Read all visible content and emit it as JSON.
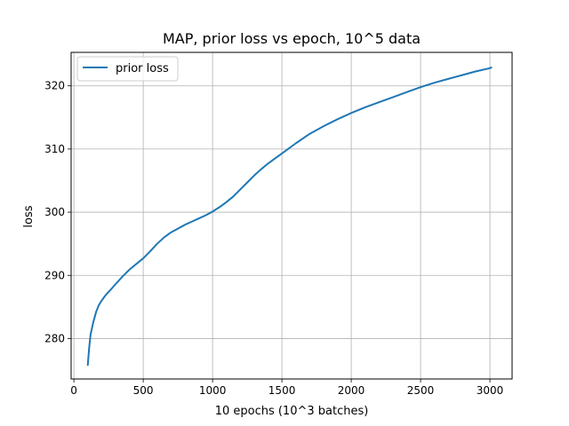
{
  "chart_data": {
    "type": "line",
    "title": "MAP, prior loss vs epoch, 10^5 data",
    "xlabel": "10 epochs (10^3 batches)",
    "ylabel": "loss",
    "xlim": [
      -20,
      3160
    ],
    "ylim": [
      273.6,
      325.3
    ],
    "xticks": [
      0,
      500,
      1000,
      1500,
      2000,
      2500,
      3000
    ],
    "xtick_labels": [
      "0",
      "500",
      "1000",
      "1500",
      "2000",
      "2500",
      "3000"
    ],
    "yticks": [
      280,
      290,
      300,
      310,
      320
    ],
    "ytick_labels": [
      "280",
      "290",
      "300",
      "310",
      "320"
    ],
    "grid": true,
    "legend_position": "top-left",
    "series": [
      {
        "name": "prior loss",
        "color": "#1f77b4",
        "x": [
          100,
          110,
          120,
          140,
          160,
          180,
          200,
          230,
          260,
          300,
          350,
          400,
          450,
          500,
          550,
          600,
          650,
          700,
          750,
          800,
          850,
          900,
          950,
          1000,
          1050,
          1100,
          1150,
          1200,
          1250,
          1300,
          1350,
          1400,
          1450,
          1500,
          1600,
          1700,
          1800,
          1900,
          2000,
          2100,
          2200,
          2300,
          2400,
          2500,
          2600,
          2700,
          2800,
          2900,
          3000,
          3010
        ],
        "y": [
          275.8,
          278.5,
          280.6,
          282.6,
          284.2,
          285.3,
          286.0,
          286.9,
          287.6,
          288.6,
          289.8,
          290.9,
          291.8,
          292.7,
          293.8,
          295.0,
          296.0,
          296.8,
          297.4,
          298.0,
          298.5,
          299.0,
          299.5,
          300.1,
          300.8,
          301.6,
          302.5,
          303.6,
          304.7,
          305.8,
          306.8,
          307.7,
          308.5,
          309.3,
          310.9,
          312.4,
          313.6,
          314.7,
          315.7,
          316.6,
          317.4,
          318.2,
          319.0,
          319.8,
          320.5,
          321.1,
          321.7,
          322.3,
          322.8,
          322.9
        ]
      }
    ]
  }
}
